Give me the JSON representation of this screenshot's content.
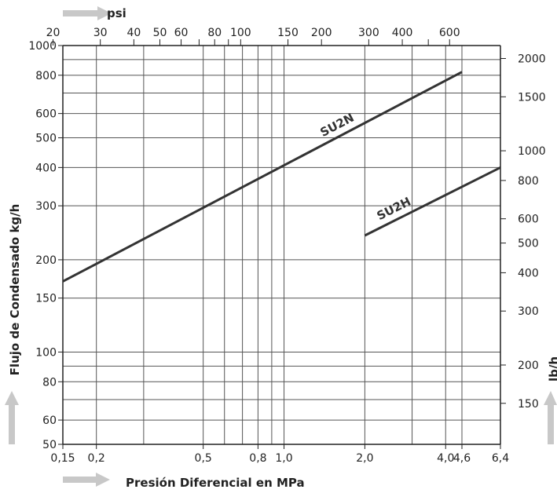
{
  "chart_data": {
    "type": "line",
    "x_scale": "log",
    "y_scale": "log",
    "grid": true,
    "xlim": [
      0.15,
      6.4
    ],
    "ylim": [
      50,
      1000
    ],
    "xlabel": "Presión Diferencial en MPa",
    "ylabel": "Flujo de Condensado kg/h",
    "top_axis_label": "psi",
    "right_axis_label": "lb/h",
    "x_ticks": [
      {
        "value": 0.15,
        "label": "0,15"
      },
      {
        "value": 0.2,
        "label": "0,2"
      },
      {
        "value": 0.5,
        "label": "0,5"
      },
      {
        "value": 0.8,
        "label": "0,8"
      },
      {
        "value": 1.0,
        "label": "1,0"
      },
      {
        "value": 2.0,
        "label": "2,0"
      },
      {
        "value": 4.0,
        "label": "4,0"
      },
      {
        "value": 4.6,
        "label": "4,6"
      },
      {
        "value": 6.4,
        "label": "6,4"
      }
    ],
    "x_gridlines": [
      0.2,
      0.3,
      0.5,
      0.6,
      0.7,
      0.8,
      0.9,
      1.0,
      2.0,
      3.0,
      4.0,
      4.6
    ],
    "y_ticks": [
      {
        "value": 50,
        "label": "50"
      },
      {
        "value": 60,
        "label": "60"
      },
      {
        "value": 80,
        "label": "80"
      },
      {
        "value": 100,
        "label": "100"
      },
      {
        "value": 150,
        "label": "150"
      },
      {
        "value": 200,
        "label": "200"
      },
      {
        "value": 300,
        "label": "300"
      },
      {
        "value": 400,
        "label": "400"
      },
      {
        "value": 500,
        "label": "500"
      },
      {
        "value": 600,
        "label": "600"
      },
      {
        "value": 800,
        "label": "800"
      },
      {
        "value": 1000,
        "label": "1000"
      }
    ],
    "y_gridlines": [
      60,
      70,
      80,
      90,
      100,
      150,
      200,
      300,
      400,
      500,
      600,
      700,
      800,
      900
    ],
    "top_ticks": [
      {
        "value": 20,
        "label": "20"
      },
      {
        "value": 30,
        "label": "30"
      },
      {
        "value": 40,
        "label": "40"
      },
      {
        "value": 50,
        "label": "50"
      },
      {
        "value": 60,
        "label": "60"
      },
      {
        "value": 80,
        "label": "80"
      },
      {
        "value": 100,
        "label": "100"
      },
      {
        "value": 150,
        "label": "150"
      },
      {
        "value": 200,
        "label": "200"
      },
      {
        "value": 300,
        "label": "300"
      },
      {
        "value": 400,
        "label": "400"
      },
      {
        "value": 600,
        "label": "600"
      }
    ],
    "top_minor_ticks": [
      70,
      90,
      500
    ],
    "right_ticks": [
      {
        "value": 150,
        "label": "150"
      },
      {
        "value": 200,
        "label": "200"
      },
      {
        "value": 300,
        "label": "300"
      },
      {
        "value": 400,
        "label": "400"
      },
      {
        "value": 500,
        "label": "500"
      },
      {
        "value": 600,
        "label": "600"
      },
      {
        "value": 800,
        "label": "800"
      },
      {
        "value": 1000,
        "label": "1000"
      },
      {
        "value": 1500,
        "label": "1500"
      },
      {
        "value": 2000,
        "label": "2000"
      }
    ],
    "series": [
      {
        "name": "SU2N",
        "x": [
          0.15,
          4.6
        ],
        "y": [
          170,
          820
        ]
      },
      {
        "name": "SU2H",
        "x": [
          2.0,
          6.4
        ],
        "y": [
          240,
          400
        ]
      }
    ]
  }
}
